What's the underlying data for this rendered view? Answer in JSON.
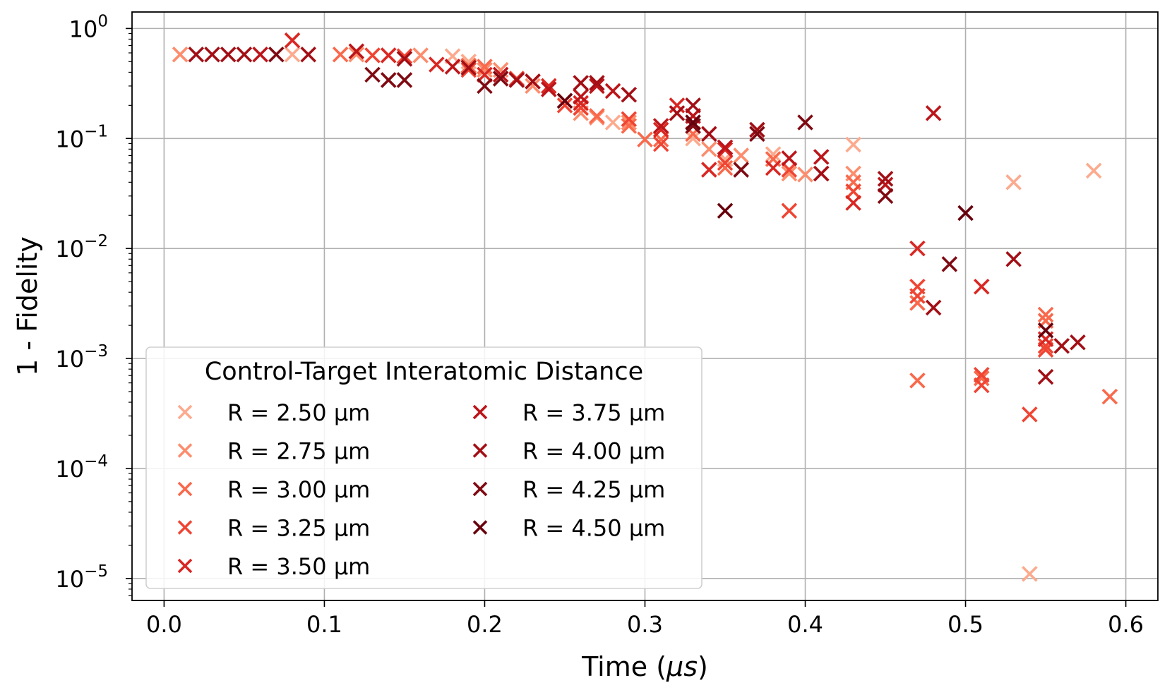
{
  "chart_data": {
    "type": "scatter",
    "marker": "x",
    "xlabel_main": "Time (",
    "xlabel_unit": "μs",
    "xlabel_close": ")",
    "ylabel": "1 - Fidelity",
    "xlim": [
      -0.02,
      0.62
    ],
    "ylim_log10": [
      -5.2,
      0.15
    ],
    "yscale": "log",
    "grid": true,
    "x_ticks": [
      0.0,
      0.1,
      0.2,
      0.3,
      0.4,
      0.5,
      0.6
    ],
    "x_tick_labels": [
      "0.0",
      "0.1",
      "0.2",
      "0.3",
      "0.4",
      "0.5",
      "0.6"
    ],
    "y_ticks": [
      {
        "exp": 0,
        "base": "10",
        "sup": "0"
      },
      {
        "exp": -1,
        "base": "10",
        "sup": "−1"
      },
      {
        "exp": -2,
        "base": "10",
        "sup": "−2"
      },
      {
        "exp": -3,
        "base": "10",
        "sup": "−3"
      },
      {
        "exp": -4,
        "base": "10",
        "sup": "−4"
      },
      {
        "exp": -5,
        "base": "10",
        "sup": "−5"
      }
    ],
    "legend": {
      "title": "Control-Target Interatomic Distance",
      "location": "lower-left",
      "columns": 2
    },
    "series": [
      {
        "name": "R = 2.50 μm",
        "color": "#fcaa8e",
        "points": [
          [
            0.01,
            0.58
          ],
          [
            0.08,
            0.58
          ],
          [
            0.18,
            0.56
          ],
          [
            0.19,
            0.5
          ],
          [
            0.28,
            0.14
          ],
          [
            0.33,
            0.1
          ],
          [
            0.35,
            0.065
          ],
          [
            0.38,
            0.072
          ],
          [
            0.43,
            0.088
          ],
          [
            0.53,
            0.04
          ],
          [
            0.54,
            1.1e-05
          ],
          [
            0.58,
            0.051
          ]
        ]
      },
      {
        "name": "R = 2.75 μm",
        "color": "#fc8d6d",
        "points": [
          [
            0.01,
            0.58
          ],
          [
            0.12,
            0.58
          ],
          [
            0.16,
            0.57
          ],
          [
            0.19,
            0.45
          ],
          [
            0.2,
            0.42
          ],
          [
            0.21,
            0.42
          ],
          [
            0.23,
            0.3
          ],
          [
            0.26,
            0.17
          ],
          [
            0.27,
            0.155
          ],
          [
            0.29,
            0.14
          ],
          [
            0.34,
            0.08
          ],
          [
            0.36,
            0.07
          ],
          [
            0.39,
            0.048
          ],
          [
            0.4,
            0.047
          ],
          [
            0.43,
            0.048
          ]
        ]
      },
      {
        "name": "R = 3.00 μm",
        "color": "#f9694c",
        "points": [
          [
            0.11,
            0.58
          ],
          [
            0.19,
            0.46
          ],
          [
            0.2,
            0.45
          ],
          [
            0.26,
            0.19
          ],
          [
            0.27,
            0.16
          ],
          [
            0.29,
            0.13
          ],
          [
            0.3,
            0.098
          ],
          [
            0.31,
            0.098
          ],
          [
            0.33,
            0.11
          ],
          [
            0.35,
            0.054
          ],
          [
            0.38,
            0.065
          ],
          [
            0.43,
            0.04
          ],
          [
            0.47,
            0.0032
          ],
          [
            0.47,
            0.00063
          ],
          [
            0.51,
            0.00066
          ],
          [
            0.55,
            0.0025
          ],
          [
            0.55,
            0.0022
          ],
          [
            0.59,
            0.00045
          ]
        ]
      },
      {
        "name": "R = 3.25 μm",
        "color": "#ef4533",
        "points": [
          [
            0.13,
            0.57
          ],
          [
            0.15,
            0.56
          ],
          [
            0.19,
            0.42
          ],
          [
            0.22,
            0.35
          ],
          [
            0.23,
            0.33
          ],
          [
            0.25,
            0.2
          ],
          [
            0.26,
            0.19
          ],
          [
            0.29,
            0.15
          ],
          [
            0.31,
            0.089
          ],
          [
            0.35,
            0.06
          ],
          [
            0.39,
            0.052
          ],
          [
            0.39,
            0.022
          ],
          [
            0.41,
            0.048
          ],
          [
            0.43,
            0.033
          ],
          [
            0.47,
            0.0045
          ],
          [
            0.47,
            0.0037
          ],
          [
            0.51,
            0.00057
          ],
          [
            0.51,
            0.00071
          ],
          [
            0.54,
            0.00031
          ],
          [
            0.55,
            0.0013
          ],
          [
            0.55,
            0.0012
          ]
        ]
      },
      {
        "name": "R = 3.50 μm",
        "color": "#d92723",
        "points": [
          [
            0.08,
            0.78
          ],
          [
            0.14,
            0.57
          ],
          [
            0.17,
            0.47
          ],
          [
            0.2,
            0.38
          ],
          [
            0.24,
            0.3
          ],
          [
            0.26,
            0.21
          ],
          [
            0.31,
            0.12
          ],
          [
            0.32,
            0.2
          ],
          [
            0.34,
            0.052
          ],
          [
            0.35,
            0.079
          ],
          [
            0.38,
            0.054
          ],
          [
            0.43,
            0.026
          ],
          [
            0.47,
            0.01
          ],
          [
            0.51,
            0.0045
          ],
          [
            0.55,
            0.0015
          ]
        ]
      },
      {
        "name": "R = 3.75 μm",
        "color": "#bb151a",
        "points": [
          [
            0.06,
            0.58
          ],
          [
            0.12,
            0.62
          ],
          [
            0.18,
            0.45
          ],
          [
            0.21,
            0.38
          ],
          [
            0.24,
            0.28
          ],
          [
            0.26,
            0.24
          ],
          [
            0.27,
            0.3
          ],
          [
            0.28,
            0.27
          ],
          [
            0.31,
            0.13
          ],
          [
            0.33,
            0.16
          ],
          [
            0.35,
            0.083
          ],
          [
            0.39,
            0.066
          ],
          [
            0.41,
            0.068
          ],
          [
            0.45,
            0.038
          ],
          [
            0.48,
            0.17
          ]
        ]
      },
      {
        "name": "R = 4.00 μm",
        "color": "#a20f15",
        "points": [
          [
            0.02,
            0.58
          ],
          [
            0.03,
            0.58
          ],
          [
            0.04,
            0.58
          ],
          [
            0.05,
            0.58
          ],
          [
            0.09,
            0.58
          ],
          [
            0.15,
            0.53
          ],
          [
            0.19,
            0.44
          ],
          [
            0.22,
            0.34
          ],
          [
            0.23,
            0.33
          ],
          [
            0.26,
            0.32
          ],
          [
            0.27,
            0.32
          ],
          [
            0.29,
            0.25
          ],
          [
            0.32,
            0.17
          ],
          [
            0.33,
            0.2
          ],
          [
            0.34,
            0.11
          ],
          [
            0.37,
            0.12
          ],
          [
            0.41,
            0.048
          ],
          [
            0.45,
            0.043
          ],
          [
            0.48,
            0.0029
          ],
          [
            0.53,
            0.008
          ],
          [
            0.55,
            0.00068
          ],
          [
            0.56,
            0.0013
          ],
          [
            0.57,
            0.0014
          ]
        ]
      },
      {
        "name": "R = 4.25 μm",
        "color": "#7f0a12",
        "points": [
          [
            0.07,
            0.58
          ],
          [
            0.13,
            0.38
          ],
          [
            0.14,
            0.34
          ],
          [
            0.15,
            0.34
          ],
          [
            0.2,
            0.3
          ],
          [
            0.21,
            0.35
          ],
          [
            0.25,
            0.22
          ],
          [
            0.33,
            0.13
          ],
          [
            0.36,
            0.052
          ],
          [
            0.37,
            0.11
          ],
          [
            0.4,
            0.14
          ],
          [
            0.45,
            0.03
          ],
          [
            0.49,
            0.0072
          ]
        ]
      },
      {
        "name": "R = 4.50 μm",
        "color": "#67000d",
        "points": [
          [
            0.25,
            0.22
          ],
          [
            0.33,
            0.14
          ],
          [
            0.35,
            0.022
          ],
          [
            0.5,
            0.021
          ],
          [
            0.55,
            0.0018
          ]
        ]
      }
    ]
  }
}
